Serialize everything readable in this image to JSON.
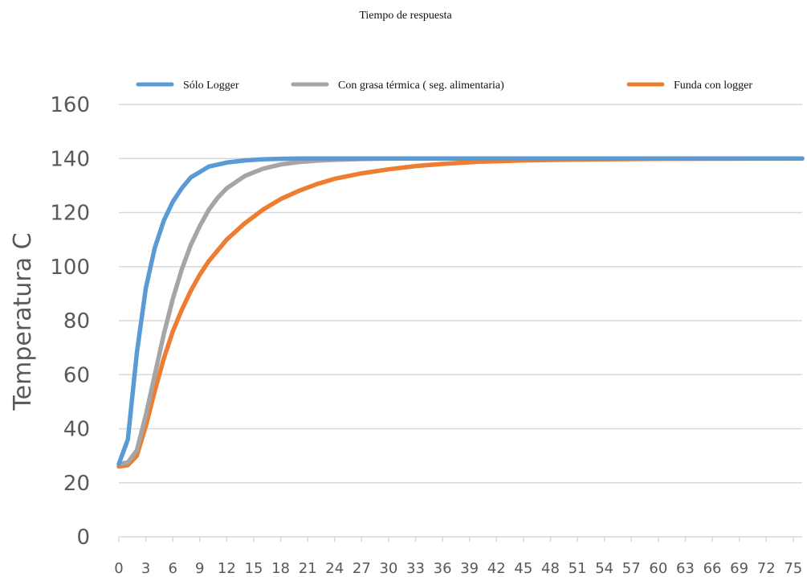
{
  "chart_data": {
    "type": "line",
    "title": "Tiempo de respuesta",
    "xlabel": "",
    "ylabel": "Temperatura C",
    "ylim": [
      0,
      160
    ],
    "yticks": [
      0,
      20,
      40,
      60,
      80,
      100,
      120,
      140,
      160
    ],
    "xlim": [
      0,
      76
    ],
    "xticks": [
      0,
      3,
      6,
      9,
      12,
      15,
      18,
      21,
      24,
      27,
      30,
      33,
      36,
      39,
      42,
      45,
      48,
      51,
      54,
      57,
      60,
      63,
      66,
      69,
      72,
      75
    ],
    "grid": true,
    "legend_position": "top",
    "series": [
      {
        "name": "Sólo Logger",
        "color": "#5B9BD5",
        "x": [
          0,
          1,
          2,
          3,
          4,
          5,
          6,
          7,
          8,
          9,
          10,
          12,
          14,
          16,
          18,
          20,
          24,
          30,
          40,
          50,
          60,
          70,
          76
        ],
        "y": [
          27,
          36,
          68,
          92,
          107,
          117,
          124,
          129,
          133,
          135,
          137,
          138.5,
          139.3,
          139.7,
          139.9,
          140,
          140,
          140,
          140,
          140,
          140,
          140,
          140
        ]
      },
      {
        "name": "Con grasa térmica ( seg. alimentaria)",
        "color": "#A5A5A5",
        "x": [
          0,
          1,
          2,
          3,
          4,
          5,
          6,
          7,
          8,
          9,
          10,
          11,
          12,
          14,
          16,
          18,
          20,
          22,
          24,
          27,
          30,
          36,
          45,
          60,
          76
        ],
        "y": [
          27,
          27.5,
          32,
          45,
          60,
          75,
          88,
          99,
          108,
          115,
          121,
          125.5,
          129,
          133.5,
          136.2,
          137.8,
          138.7,
          139.2,
          139.5,
          139.8,
          140,
          140,
          140,
          140,
          140
        ]
      },
      {
        "name": "Funda con logger",
        "color": "#ED7D31",
        "x": [
          0,
          1,
          2,
          3,
          4,
          5,
          6,
          7,
          8,
          9,
          10,
          12,
          14,
          16,
          18,
          20,
          22,
          24,
          27,
          30,
          33,
          36,
          40,
          45,
          50,
          60,
          76
        ],
        "y": [
          26,
          26.5,
          30,
          41,
          54,
          66,
          76,
          84,
          91,
          97,
          102,
          110,
          116,
          121,
          125,
          128,
          130.5,
          132.5,
          134.5,
          136,
          137.2,
          138,
          138.8,
          139.3,
          139.6,
          139.9,
          140
        ]
      }
    ]
  }
}
